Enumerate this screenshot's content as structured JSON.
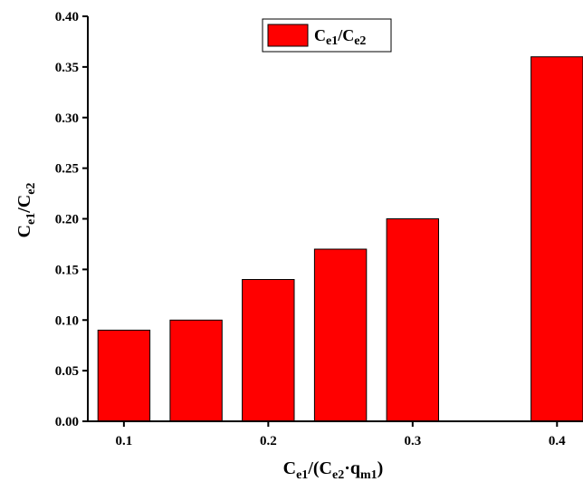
{
  "chart_data": {
    "type": "bar",
    "x": [
      0.1,
      0.15,
      0.2,
      0.25,
      0.3,
      0.4
    ],
    "values": [
      0.09,
      0.1,
      0.14,
      0.17,
      0.2,
      0.36
    ],
    "xlim": [
      0.075,
      0.418
    ],
    "ylim": [
      0,
      0.4
    ],
    "x_ticks": [
      0.1,
      0.2,
      0.3,
      0.4
    ],
    "x_tick_labels": [
      "0.1",
      "0.2",
      "0.3",
      "0.4"
    ],
    "y_ticks": [
      0,
      0.05,
      0.1,
      0.15,
      0.2,
      0.25,
      0.3,
      0.35,
      0.4
    ],
    "y_tick_labels": [
      "0.00",
      "0.05",
      "0.10",
      "0.15",
      "0.20",
      "0.25",
      "0.30",
      "0.35",
      "0.40"
    ],
    "xlabel": {
      "main": "C",
      "sub1": "e1",
      "mid": "/(C",
      "sub2": "e2",
      "dot": "·q",
      "sub3": "m1",
      "end": ")"
    },
    "ylabel": {
      "main": "C",
      "sub1": "e1",
      "mid": "/C",
      "sub2": "e2"
    },
    "legend": {
      "main": "C",
      "sub1": "e1",
      "mid": "/C",
      "sub2": "e2",
      "position": "top-center"
    },
    "bar_color": "#ff0000",
    "grid": false
  }
}
